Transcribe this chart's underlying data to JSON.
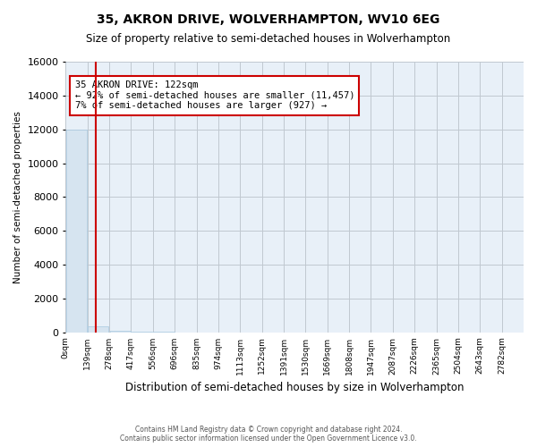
{
  "title1": "35, AKRON DRIVE, WOLVERHAMPTON, WV10 6EG",
  "title2": "Size of property relative to semi-detached houses in Wolverhampton",
  "xlabel": "Distribution of semi-detached houses by size in Wolverhampton",
  "ylabel": "Number of semi-detached properties",
  "footer1": "Contains HM Land Registry data © Crown copyright and database right 2024.",
  "footer2": "Contains public sector information licensed under the Open Government Licence v3.0.",
  "bin_labels": [
    "0sqm",
    "139sqm",
    "278sqm",
    "417sqm",
    "556sqm",
    "696sqm",
    "835sqm",
    "974sqm",
    "1113sqm",
    "1252sqm",
    "1391sqm",
    "1530sqm",
    "1669sqm",
    "1808sqm",
    "1947sqm",
    "2087sqm",
    "2226sqm",
    "2365sqm",
    "2504sqm",
    "2643sqm",
    "2782sqm"
  ],
  "bar_values": [
    12000,
    350,
    80,
    30,
    10,
    5,
    3,
    2,
    1,
    1,
    0,
    0,
    0,
    0,
    0,
    0,
    0,
    0,
    0,
    0,
    0
  ],
  "bar_color": "#d6e4f0",
  "bar_edge_color": "#a8c8e0",
  "ylim": [
    0,
    16000
  ],
  "yticks": [
    0,
    2000,
    4000,
    6000,
    8000,
    10000,
    12000,
    14000,
    16000
  ],
  "property_bin_index": 0.88,
  "property_line_color": "#cc0000",
  "annotation_text_line1": "35 AKRON DRIVE: 122sqm",
  "annotation_text_line2": "← 92% of semi-detached houses are smaller (11,457)",
  "annotation_text_line3": "7% of semi-detached houses are larger (927) →",
  "annotation_box_color": "#ffffff",
  "annotation_box_edge_color": "#cc0000",
  "grid_color": "#c0c8d0",
  "background_color": "#e8f0f8"
}
